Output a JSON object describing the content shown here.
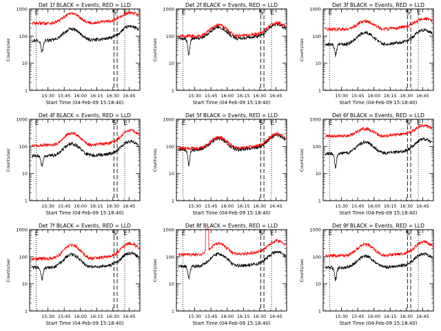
{
  "colors": {
    "events": "#000000",
    "lld": "#ff0000",
    "axes": "#000000"
  },
  "chart_data": [
    {
      "type": "line",
      "title": "Det 1f BLACK = Events, RED = LLD",
      "xlabel": "Start Time (04-Feb-09 15:18:40)",
      "ylabel": "Counts/sec",
      "yscale": "log",
      "ylim": [
        1,
        1000
      ],
      "x_ticks": [
        "15:30",
        "15:45",
        "16:00",
        "16:15",
        "16:30",
        "16:45"
      ],
      "y_ticks": [
        "1",
        "10",
        "100",
        "1000"
      ],
      "markers": [
        {
          "label": "E",
          "x": "15:19",
          "style": "dotted"
        },
        {
          "label": "S",
          "x": "16:31",
          "style": "dashed"
        },
        {
          "label": "",
          "x": "16:34",
          "style": "dashed"
        },
        {
          "label": "E",
          "x": "16:41",
          "style": "dotted"
        }
      ],
      "series": [
        {
          "name": "Events",
          "color": "#000000",
          "base": 70,
          "peak1": 2.6,
          "peak2": 2.9,
          "dip": 25
        },
        {
          "name": "LLD",
          "color": "#ff0000",
          "base": 300,
          "peak1": 2.3,
          "peak2": 2.0,
          "dip": 0
        }
      ]
    },
    {
      "type": "line",
      "title": "Det 2f BLACK = Events, RED = LLD",
      "xlabel": "Start Time (04-Feb-09 15:18:40)",
      "ylabel": "Counts/sec",
      "yscale": "log",
      "ylim": [
        1,
        1000
      ],
      "x_ticks": [
        "15:30",
        "15:45",
        "16:00",
        "16:15",
        "16:30",
        "16:45"
      ],
      "y_ticks": [
        "1",
        "10",
        "100",
        "1000"
      ],
      "markers": [
        {
          "label": "E",
          "x": "15:19",
          "style": "dotted"
        },
        {
          "label": "S",
          "x": "16:31",
          "style": "dashed"
        },
        {
          "label": "",
          "x": "16:34",
          "style": "dashed"
        },
        {
          "label": "E",
          "x": "16:41",
          "style": "dotted"
        }
      ],
      "series": [
        {
          "name": "Events",
          "color": "#000000",
          "base": 80,
          "peak1": 2.7,
          "peak2": 3.0,
          "dip": 20
        },
        {
          "name": "LLD",
          "color": "#ff0000",
          "base": 100,
          "peak1": 2.6,
          "peak2": 2.7,
          "dip": 0
        }
      ]
    },
    {
      "type": "line",
      "title": "Det 3f BLACK = Events, RED = LLD",
      "xlabel": "Start Time (04-Feb-09 15:18:40)",
      "ylabel": "Counts/sec",
      "yscale": "log",
      "ylim": [
        1,
        1000
      ],
      "x_ticks": [
        "15:30",
        "15:45",
        "16:00",
        "16:15",
        "16:30",
        "16:45"
      ],
      "y_ticks": [
        "1",
        "10",
        "100",
        "1000"
      ],
      "markers": [
        {
          "label": "E",
          "x": "15:19",
          "style": "dotted"
        },
        {
          "label": "S",
          "x": "16:31",
          "style": "dashed"
        },
        {
          "label": "",
          "x": "16:34",
          "style": "dashed"
        },
        {
          "label": "E",
          "x": "16:41",
          "style": "dotted"
        }
      ],
      "series": [
        {
          "name": "Events",
          "color": "#000000",
          "base": 50,
          "peak1": 2.7,
          "peak2": 3.0,
          "dip": 20
        },
        {
          "name": "LLD",
          "color": "#ff0000",
          "base": 180,
          "peak1": 2.0,
          "peak2": 2.0,
          "dip": 0
        }
      ]
    },
    {
      "type": "line",
      "title": "Det 4f BLACK = Events, RED = LLD",
      "xlabel": "Start Time (04-Feb-09 15:18:40)",
      "ylabel": "Counts/sec",
      "yscale": "log",
      "ylim": [
        1,
        1000
      ],
      "x_ticks": [
        "15:30",
        "15:45",
        "16:00",
        "16:15",
        "16:30",
        "16:45"
      ],
      "y_ticks": [
        "1",
        "10",
        "100",
        "1000"
      ],
      "markers": [
        {
          "label": "E",
          "x": "15:19",
          "style": "dotted"
        },
        {
          "label": "S",
          "x": "16:31",
          "style": "dashed"
        },
        {
          "label": "",
          "x": "16:34",
          "style": "dashed"
        },
        {
          "label": "E",
          "x": "16:41",
          "style": "dotted"
        }
      ],
      "series": [
        {
          "name": "Events",
          "color": "#000000",
          "base": 45,
          "peak1": 2.8,
          "peak2": 3.0,
          "dip": 18
        },
        {
          "name": "LLD",
          "color": "#ff0000",
          "base": 110,
          "peak1": 2.8,
          "peak2": 3.2,
          "dip": 0
        }
      ]
    },
    {
      "type": "line",
      "title": "Det 5f BLACK = Events, RED = LLD",
      "xlabel": "Start Time (04-Feb-09 15:18:40)",
      "ylabel": "Counts/sec",
      "yscale": "log",
      "ylim": [
        1,
        1000
      ],
      "x_ticks": [
        "15:30",
        "15:45",
        "16:00",
        "16:15",
        "16:30",
        "16:45"
      ],
      "y_ticks": [
        "1",
        "10",
        "100",
        "1000"
      ],
      "markers": [
        {
          "label": "E",
          "x": "15:19",
          "style": "dotted"
        },
        {
          "label": "S",
          "x": "16:31",
          "style": "dashed"
        },
        {
          "label": "",
          "x": "16:34",
          "style": "dashed"
        },
        {
          "label": "E",
          "x": "16:41",
          "style": "dotted"
        }
      ],
      "series": [
        {
          "name": "Events",
          "color": "#000000",
          "base": 75,
          "peak1": 2.6,
          "peak2": 3.0,
          "dip": 20
        },
        {
          "name": "LLD",
          "color": "#ff0000",
          "base": 85,
          "peak1": 2.6,
          "peak2": 3.0,
          "dip": 0
        }
      ]
    },
    {
      "type": "line",
      "title": "Det 6f BLACK = Events, RED = LLD",
      "xlabel": "Start Time (04-Feb-09 15:18:40)",
      "ylabel": "Counts/sec",
      "yscale": "log",
      "ylim": [
        1,
        1000
      ],
      "x_ticks": [
        "15:30",
        "15:45",
        "16:00",
        "16:15",
        "16:30",
        "16:45"
      ],
      "y_ticks": [
        "1",
        "10",
        "100",
        "1000"
      ],
      "markers": [
        {
          "label": "E",
          "x": "15:19",
          "style": "dotted"
        },
        {
          "label": "S",
          "x": "16:31",
          "style": "dashed"
        },
        {
          "label": "",
          "x": "16:34",
          "style": "dashed"
        },
        {
          "label": "E",
          "x": "16:41",
          "style": "dotted"
        }
      ],
      "series": [
        {
          "name": "Events",
          "color": "#000000",
          "base": 55,
          "peak1": 2.6,
          "peak2": 3.0,
          "dip": 18
        },
        {
          "name": "LLD",
          "color": "#ff0000",
          "base": 240,
          "peak1": 1.9,
          "peak2": 2.0,
          "dip": 0
        }
      ]
    },
    {
      "type": "line",
      "title": "Det 7f BLACK = Events, RED = LLD",
      "xlabel": "Start Time (04-Feb-09 15:18:40)",
      "ylabel": "Counts/sec",
      "yscale": "log",
      "ylim": [
        1,
        1000
      ],
      "x_ticks": [
        "15:30",
        "15:45",
        "16:00",
        "16:15",
        "16:30",
        "16:45"
      ],
      "y_ticks": [
        "1",
        "10",
        "100",
        "1000"
      ],
      "markers": [
        {
          "label": "E",
          "x": "15:19",
          "style": "dotted"
        },
        {
          "label": "S",
          "x": "16:31",
          "style": "dashed"
        },
        {
          "label": "",
          "x": "16:34",
          "style": "dashed"
        },
        {
          "label": "E",
          "x": "16:41",
          "style": "dotted"
        }
      ],
      "series": [
        {
          "name": "Events",
          "color": "#000000",
          "base": 40,
          "peak1": 3.0,
          "peak2": 3.0,
          "dip": 15
        },
        {
          "name": "LLD",
          "color": "#ff0000",
          "base": 85,
          "peak1": 3.2,
          "peak2": 3.3,
          "dip": 0
        }
      ]
    },
    {
      "type": "line",
      "title": "Det 8f BLACK = Events, RED = LLD",
      "xlabel": "Start Time (04-Feb-09 15:18:40)",
      "ylabel": "Counts/sec",
      "yscale": "log",
      "ylim": [
        1,
        1000
      ],
      "x_ticks": [
        "15:30",
        "15:45",
        "16:00",
        "16:15",
        "16:30",
        "16:45"
      ],
      "y_ticks": [
        "1",
        "10",
        "100",
        "1000"
      ],
      "markers": [
        {
          "label": "E",
          "x": "15:19",
          "style": "dotted"
        },
        {
          "label": "S",
          "x": "16:31",
          "style": "dashed"
        },
        {
          "label": "",
          "x": "16:34",
          "style": "dashed"
        },
        {
          "label": "E",
          "x": "16:41",
          "style": "dotted"
        }
      ],
      "spike": {
        "series": "LLD",
        "x": [
          "15:40",
          "15:43"
        ],
        "value": 1000
      },
      "series": [
        {
          "name": "Events",
          "color": "#000000",
          "base": 45,
          "peak1": 2.8,
          "peak2": 3.0,
          "dip": 18
        },
        {
          "name": "LLD",
          "color": "#ff0000",
          "base": 120,
          "peak1": 2.5,
          "peak2": 2.8,
          "dip": 0
        }
      ]
    },
    {
      "type": "line",
      "title": "Det 9f BLACK = Events, RED = LLD",
      "xlabel": "Start Time (04-Feb-09 15:18:40)",
      "ylabel": "Counts/sec",
      "yscale": "log",
      "ylim": [
        1,
        1000
      ],
      "x_ticks": [
        "15:30",
        "15:45",
        "16:00",
        "16:15",
        "16:30",
        "16:45"
      ],
      "y_ticks": [
        "1",
        "10",
        "100",
        "1000"
      ],
      "markers": [
        {
          "label": "E",
          "x": "15:19",
          "style": "dotted"
        },
        {
          "label": "S",
          "x": "16:31",
          "style": "dashed"
        },
        {
          "label": "",
          "x": "16:34",
          "style": "dashed"
        },
        {
          "label": "E",
          "x": "16:41",
          "style": "dotted"
        }
      ],
      "series": [
        {
          "name": "Events",
          "color": "#000000",
          "base": 40,
          "peak1": 2.6,
          "peak2": 2.8,
          "dip": 15
        },
        {
          "name": "LLD",
          "color": "#ff0000",
          "base": 110,
          "peak1": 2.6,
          "peak2": 2.8,
          "dip": 0
        }
      ]
    }
  ]
}
